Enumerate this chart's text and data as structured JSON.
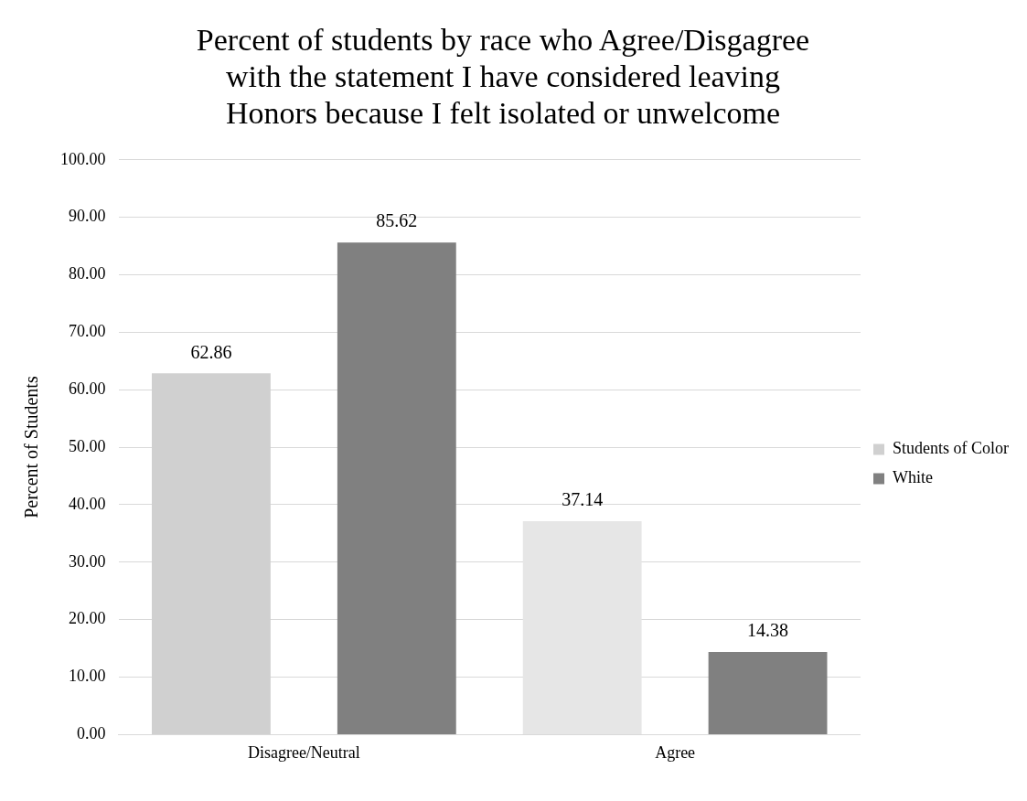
{
  "chart_data": {
    "type": "bar",
    "title": "Percent of students by race who Agree/Disgagree with the statement I have considered leaving Honors because I felt isolated or unwelcome",
    "ylabel": "Percent of Students",
    "categories": [
      "Disagree/Neutral",
      "Agree"
    ],
    "series": [
      {
        "name": "Students of Color",
        "color": "#d0d0d0",
        "colors": [
          "#d0d0d0",
          "#e6e6e6"
        ],
        "values": [
          62.86,
          37.14
        ]
      },
      {
        "name": "White",
        "color": "#808080",
        "values": [
          85.62,
          14.38
        ]
      }
    ],
    "ylim": [
      0,
      100
    ],
    "yticks": [
      {
        "value": 0,
        "label": "0.00"
      },
      {
        "value": 10,
        "label": "10.00"
      },
      {
        "value": 20,
        "label": "20.00"
      },
      {
        "value": 30,
        "label": "30.00"
      },
      {
        "value": 40,
        "label": "40.00"
      },
      {
        "value": 50,
        "label": "50.00"
      },
      {
        "value": 60,
        "label": "60.00"
      },
      {
        "value": 70,
        "label": "70.00"
      },
      {
        "value": 80,
        "label": "80.00"
      },
      {
        "value": 90,
        "label": "90.00"
      },
      {
        "value": 100,
        "label": "100.00"
      }
    ],
    "grid": "y",
    "legend": "right",
    "data_labels": true
  }
}
